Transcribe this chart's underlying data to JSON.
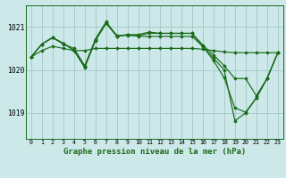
{
  "bg_color": "#cce8e8",
  "grid_color": "#aacccc",
  "line_color": "#1a6b1a",
  "marker_color": "#1a6b1a",
  "xlabel": "Graphe pression niveau de la mer (hPa)",
  "xlabel_fontsize": 6.5,
  "xtick_labels": [
    "0",
    "1",
    "2",
    "3",
    "4",
    "5",
    "6",
    "7",
    "8",
    "9",
    "10",
    "11",
    "12",
    "13",
    "14",
    "15",
    "16",
    "17",
    "18",
    "19",
    "20",
    "21",
    "22",
    "23"
  ],
  "yticks": [
    1019,
    1020,
    1021
  ],
  "ylim": [
    1018.4,
    1021.5
  ],
  "xlim": [
    -0.5,
    23.5
  ],
  "series": [
    [
      1020.3,
      1020.45,
      1020.55,
      1020.5,
      1020.45,
      1020.45,
      1020.5,
      1020.5,
      1020.5,
      1020.5,
      1020.5,
      1020.5,
      1020.5,
      1020.5,
      1020.5,
      1020.5,
      1020.48,
      1020.45,
      1020.42,
      1020.4,
      1020.4,
      1020.4,
      1020.4,
      1020.4
    ],
    [
      1020.3,
      1020.6,
      1020.75,
      1020.6,
      1020.5,
      1020.1,
      1020.7,
      1021.1,
      1020.8,
      1020.8,
      1020.8,
      1020.85,
      1020.85,
      1020.85,
      1020.85,
      1020.85,
      1020.58,
      1020.35,
      1020.1,
      1019.8,
      1019.8,
      1019.4,
      1019.8,
      1020.4
    ],
    [
      1020.3,
      1020.6,
      1020.75,
      1020.62,
      1020.45,
      1020.08,
      1020.72,
      1021.12,
      1020.78,
      1020.82,
      1020.78,
      1020.78,
      1020.78,
      1020.78,
      1020.78,
      1020.78,
      1020.55,
      1020.28,
      1020.0,
      1018.82,
      1019.0,
      1019.35,
      1019.8,
      1020.4
    ],
    [
      1020.3,
      1020.6,
      1020.75,
      1020.62,
      1020.45,
      1020.05,
      1020.68,
      1021.08,
      1020.78,
      1020.82,
      1020.82,
      1020.88,
      1020.85,
      1020.85,
      1020.85,
      1020.85,
      1020.55,
      1020.22,
      1019.82,
      1019.12,
      1019.02,
      1019.35,
      1019.8,
      1020.4
    ]
  ]
}
